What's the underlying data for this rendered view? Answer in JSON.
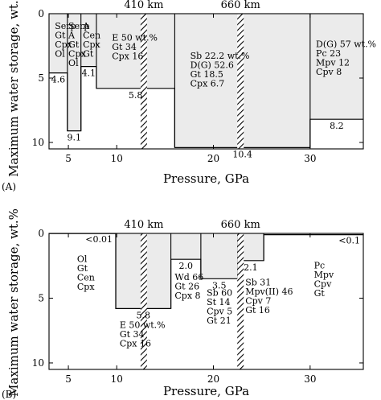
{
  "chart_data": [
    {
      "type": "step",
      "panel_label": "(A)",
      "xlabel": "Pressure, GPa",
      "ylabel": "Maximum water storage, wt.%",
      "xlim": [
        3,
        35.5
      ],
      "ylim": [
        0,
        10.5
      ],
      "y_inverted": true,
      "x_ticks": [
        "5",
        "10",
        "20",
        "30"
      ],
      "y_ticks": [
        "0",
        "5",
        "10"
      ],
      "depth_markers": [
        {
          "label": "410 km",
          "pressure": 12.8
        },
        {
          "label": "660 km",
          "pressure": 22.8
        }
      ],
      "steps": [
        {
          "x_start": 3,
          "x_end": 4.9,
          "value": 4.6,
          "label": "4.6"
        },
        {
          "x_start": 4.9,
          "x_end": 6.3,
          "value": 9.1,
          "label": "9.1"
        },
        {
          "x_start": 6.3,
          "x_end": 7.9,
          "value": 4.1,
          "label": "4.1"
        },
        {
          "x_start": 7.9,
          "x_end": 16.0,
          "value": 5.8,
          "label": "5.8"
        },
        {
          "x_start": 16.0,
          "x_end": 30.0,
          "value": 10.4,
          "label": "10.4"
        },
        {
          "x_start": 30.0,
          "x_end": 35.5,
          "value": 8.2,
          "label": "8.2"
        }
      ],
      "assemblages": [
        {
          "x": 3.6,
          "y": 1.2,
          "lines": [
            "Serp",
            "Gt",
            "Cpx",
            "Ol"
          ]
        },
        {
          "x": 5.0,
          "y": 1.2,
          "lines": [
            "Serp",
            "A",
            "Gt",
            "Cpx",
            "Ol"
          ]
        },
        {
          "x": 6.5,
          "y": 1.2,
          "lines": [
            "A",
            "Cen",
            "Cpx",
            "Gt"
          ]
        },
        {
          "x": 9.5,
          "y": 2.1,
          "lines": [
            "E        50 wt.%",
            "Gt      34",
            "Cpx    16"
          ]
        },
        {
          "x": 17.6,
          "y": 3.5,
          "lines": [
            "Sb      22.2 wt.%",
            "D(G)  52.6",
            "Gt       18.5",
            "Cpx     6.7"
          ]
        },
        {
          "x": 30.6,
          "y": 2.6,
          "lines": [
            "D(G)   57 wt.%",
            "Pc        23",
            "Mpv     12",
            "Cpv      8"
          ]
        }
      ]
    },
    {
      "type": "step",
      "panel_label": "(B)",
      "xlabel": "Pressure, GPa",
      "ylabel": "Maximum water storage, wt.%",
      "xlim": [
        3,
        35.5
      ],
      "ylim": [
        0,
        10.5
      ],
      "y_inverted": true,
      "x_ticks": [
        "5",
        "10",
        "20",
        "30"
      ],
      "y_ticks": [
        "0",
        "5",
        "10"
      ],
      "depth_markers": [
        {
          "label": "410 km",
          "pressure": 12.8
        },
        {
          "label": "660 km",
          "pressure": 22.8
        }
      ],
      "steps": [
        {
          "x_start": 3,
          "x_end": 9.9,
          "value": 0.01,
          "label": "<0.01"
        },
        {
          "x_start": 9.9,
          "x_end": 15.6,
          "value": 5.8,
          "label": "5.8"
        },
        {
          "x_start": 15.6,
          "x_end": 18.7,
          "value": 2.0,
          "label": "2.0"
        },
        {
          "x_start": 18.7,
          "x_end": 22.5,
          "value": 3.5,
          "label": "3.5"
        },
        {
          "x_start": 22.5,
          "x_end": 25.2,
          "value": 2.1,
          "label": "2.1"
        },
        {
          "x_start": 25.2,
          "x_end": 35.5,
          "value": 0.1,
          "label": "<0.1"
        }
      ],
      "assemblages": [
        {
          "x": 5.9,
          "y": 2.2,
          "lines": [
            "Ol",
            "Gt",
            "Cen",
            "Cpx"
          ]
        },
        {
          "x": 10.3,
          "y": 7.3,
          "lines": [
            "E        50 wt.%",
            "Gt      34",
            "Cpx    16"
          ]
        },
        {
          "x": 16.0,
          "y": 3.6,
          "lines": [
            "Wd 66",
            "Gt   26",
            "Cpx 8"
          ]
        },
        {
          "x": 19.3,
          "y": 4.8,
          "lines": [
            "Sb 60",
            "St  14",
            "Cpv 5",
            "Gt 21"
          ]
        },
        {
          "x": 23.3,
          "y": 4.0,
          "lines": [
            "Sb   31",
            "Mpv(II) 46",
            "Cpv 7",
            "Gt  16"
          ]
        },
        {
          "x": 30.4,
          "y": 2.7,
          "lines": [
            "Pc",
            "Mpv",
            "Cpv",
            "Gt"
          ]
        }
      ]
    }
  ]
}
